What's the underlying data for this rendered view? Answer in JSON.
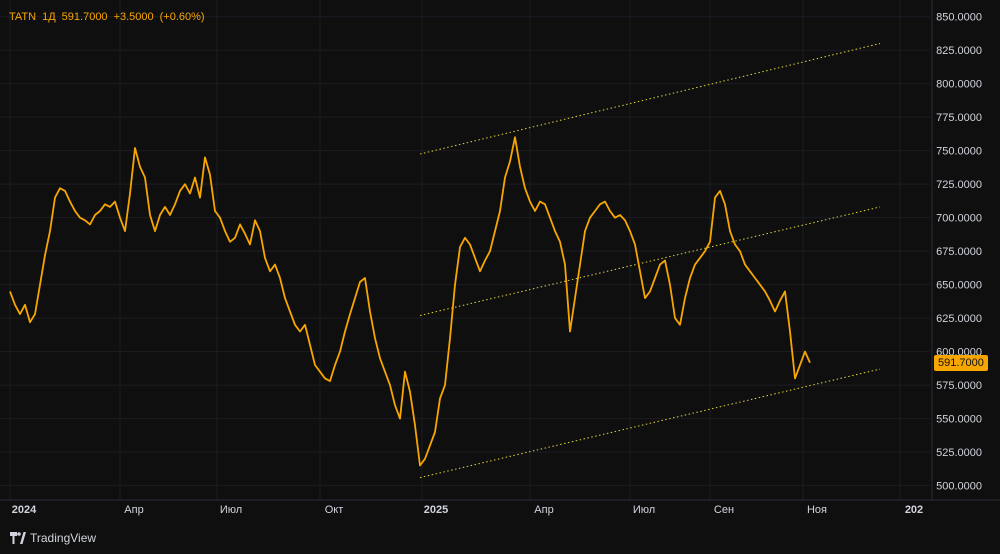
{
  "legend": {
    "symbol": "TATN",
    "interval": "1Д",
    "price": "591.7000",
    "change": "+3.5000",
    "change_pct": "(+0.60%)"
  },
  "brand": "TradingView",
  "colors": {
    "background": "#0f0f10",
    "line": "#f7a600",
    "channel": "#e2d43c",
    "grid": "#1c1d22",
    "axis_text": "#d1d4dc"
  },
  "chart_data": {
    "type": "line",
    "series": [
      {
        "values": [
          [
            0,
            645
          ],
          [
            5,
            635
          ],
          [
            10,
            628
          ],
          [
            15,
            635
          ],
          [
            20,
            622
          ],
          [
            25,
            628
          ],
          [
            30,
            650
          ],
          [
            35,
            672
          ],
          [
            40,
            690
          ],
          [
            45,
            715
          ],
          [
            50,
            722
          ],
          [
            55,
            720
          ],
          [
            60,
            712
          ],
          [
            65,
            705
          ],
          [
            70,
            700
          ],
          [
            75,
            698
          ],
          [
            80,
            695
          ],
          [
            85,
            702
          ],
          [
            90,
            705
          ],
          [
            95,
            710
          ],
          [
            100,
            708
          ],
          [
            105,
            712
          ],
          [
            110,
            700
          ],
          [
            115,
            690
          ],
          [
            120,
            718
          ],
          [
            125,
            752
          ],
          [
            130,
            738
          ],
          [
            135,
            730
          ],
          [
            140,
            702
          ],
          [
            145,
            690
          ],
          [
            150,
            702
          ],
          [
            155,
            708
          ],
          [
            160,
            702
          ],
          [
            165,
            710
          ],
          [
            170,
            720
          ],
          [
            175,
            725
          ],
          [
            180,
            718
          ],
          [
            185,
            730
          ],
          [
            190,
            715
          ],
          [
            195,
            745
          ],
          [
            200,
            732
          ],
          [
            205,
            705
          ],
          [
            210,
            700
          ],
          [
            215,
            690
          ],
          [
            220,
            682
          ],
          [
            225,
            685
          ],
          [
            230,
            695
          ],
          [
            235,
            688
          ],
          [
            240,
            680
          ],
          [
            245,
            698
          ],
          [
            250,
            690
          ],
          [
            255,
            670
          ],
          [
            260,
            660
          ],
          [
            265,
            665
          ],
          [
            270,
            655
          ],
          [
            275,
            640
          ],
          [
            280,
            630
          ],
          [
            285,
            620
          ],
          [
            290,
            615
          ],
          [
            295,
            620
          ],
          [
            300,
            605
          ],
          [
            305,
            590
          ],
          [
            310,
            585
          ],
          [
            315,
            580
          ],
          [
            320,
            578
          ],
          [
            325,
            590
          ],
          [
            330,
            600
          ],
          [
            335,
            615
          ],
          [
            340,
            628
          ],
          [
            345,
            640
          ],
          [
            350,
            652
          ],
          [
            355,
            655
          ],
          [
            360,
            630
          ],
          [
            365,
            610
          ],
          [
            370,
            595
          ],
          [
            375,
            585
          ],
          [
            380,
            575
          ],
          [
            385,
            560
          ],
          [
            390,
            550
          ],
          [
            395,
            585
          ],
          [
            400,
            570
          ],
          [
            405,
            545
          ],
          [
            410,
            515
          ],
          [
            415,
            520
          ],
          [
            420,
            530
          ],
          [
            425,
            540
          ],
          [
            430,
            565
          ],
          [
            435,
            575
          ],
          [
            440,
            610
          ],
          [
            445,
            650
          ],
          [
            450,
            678
          ],
          [
            455,
            685
          ],
          [
            460,
            680
          ],
          [
            465,
            670
          ],
          [
            470,
            660
          ],
          [
            475,
            668
          ],
          [
            480,
            675
          ],
          [
            485,
            690
          ],
          [
            490,
            705
          ],
          [
            495,
            730
          ],
          [
            500,
            742
          ],
          [
            505,
            760
          ],
          [
            510,
            738
          ],
          [
            515,
            722
          ],
          [
            520,
            712
          ],
          [
            525,
            705
          ],
          [
            530,
            712
          ],
          [
            535,
            710
          ],
          [
            540,
            700
          ],
          [
            545,
            690
          ],
          [
            550,
            682
          ],
          [
            555,
            665
          ],
          [
            560,
            615
          ],
          [
            565,
            640
          ],
          [
            570,
            665
          ],
          [
            575,
            690
          ],
          [
            580,
            700
          ],
          [
            585,
            705
          ],
          [
            590,
            710
          ],
          [
            595,
            712
          ],
          [
            600,
            705
          ],
          [
            605,
            700
          ],
          [
            610,
            702
          ],
          [
            615,
            698
          ],
          [
            620,
            690
          ],
          [
            625,
            680
          ],
          [
            630,
            660
          ],
          [
            635,
            640
          ],
          [
            640,
            645
          ],
          [
            645,
            655
          ],
          [
            650,
            665
          ],
          [
            655,
            668
          ],
          [
            660,
            650
          ],
          [
            665,
            625
          ],
          [
            670,
            620
          ],
          [
            675,
            640
          ],
          [
            680,
            655
          ],
          [
            685,
            665
          ],
          [
            690,
            670
          ],
          [
            695,
            675
          ],
          [
            700,
            682
          ],
          [
            705,
            715
          ],
          [
            710,
            720
          ],
          [
            715,
            710
          ],
          [
            720,
            690
          ],
          [
            725,
            680
          ],
          [
            730,
            675
          ],
          [
            735,
            665
          ],
          [
            740,
            660
          ],
          [
            745,
            655
          ],
          [
            750,
            650
          ],
          [
            755,
            645
          ],
          [
            760,
            638
          ],
          [
            765,
            630
          ],
          [
            770,
            638
          ],
          [
            775,
            645
          ],
          [
            780,
            615
          ],
          [
            785,
            580
          ],
          [
            790,
            590
          ],
          [
            795,
            600
          ],
          [
            800,
            591.7
          ]
        ]
      }
    ],
    "channel_lines": [
      {
        "x": [
          410,
          870
        ],
        "y": [
          747.5,
          830
        ]
      },
      {
        "x": [
          410,
          870
        ],
        "y": [
          627,
          708
        ]
      },
      {
        "x": [
          410,
          870
        ],
        "y": [
          506,
          587
        ]
      }
    ],
    "xlabels": [
      "2024",
      "Апр",
      "Июл",
      "Окт",
      "2025",
      "Апр",
      "Июл",
      "Сен",
      "Ноя",
      "202"
    ],
    "xlabel_positions": [
      0,
      110,
      207,
      310,
      412,
      520,
      620,
      700,
      793,
      890
    ],
    "ylabels": [
      "850.0000",
      "825.0000",
      "800.0000",
      "775.0000",
      "750.0000",
      "725.0000",
      "700.0000",
      "675.0000",
      "650.0000",
      "625.0000",
      "600.0000",
      "575.0000",
      "550.0000",
      "525.0000",
      "500.0000"
    ],
    "yticks": [
      850,
      825,
      800,
      775,
      750,
      725,
      700,
      675,
      650,
      625,
      600,
      575,
      550,
      525,
      500
    ],
    "ylim": [
      493,
      855
    ],
    "xlim": [
      0,
      920
    ],
    "last_price_label": "591.7000",
    "last_price": 591.7
  }
}
